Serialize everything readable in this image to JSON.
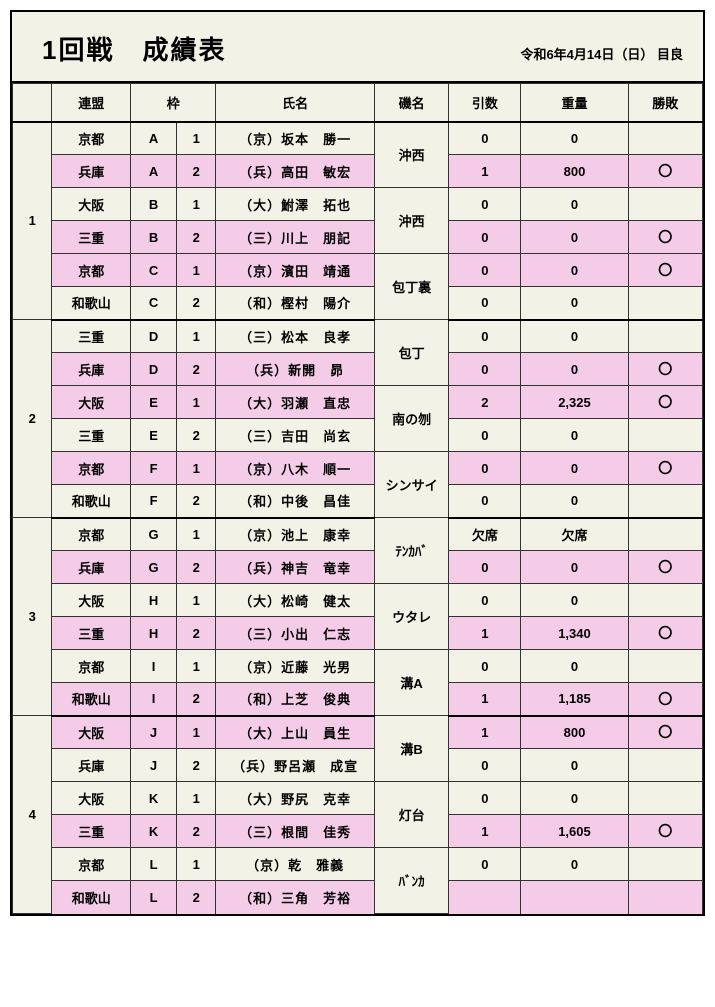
{
  "title": "1回戦　成績表",
  "date": "令和6年4月14日（日）  目良",
  "headers": {
    "group": "",
    "federation": "連盟",
    "frame": "枠",
    "name": "氏名",
    "place": "磯名",
    "count": "引数",
    "weight": "重量",
    "win": "勝敗"
  },
  "colors": {
    "bg": "#f2f2e6",
    "pink": "#f5cce8",
    "border": "#000000"
  },
  "groups": [
    {
      "id": "1",
      "pairs": [
        {
          "place": "沖西",
          "rows": [
            {
              "fed": "京都",
              "fa": "A",
              "fb": "1",
              "name": "（京）坂本　勝一",
              "count": "0",
              "weight": "0",
              "win": "",
              "hl": false
            },
            {
              "fed": "兵庫",
              "fa": "A",
              "fb": "2",
              "name": "（兵）高田　敏宏",
              "count": "1",
              "weight": "800",
              "win": "〇",
              "hl": true
            }
          ]
        },
        {
          "place": "沖西",
          "rows": [
            {
              "fed": "大阪",
              "fa": "B",
              "fb": "1",
              "name": "（大）鮒澤　拓也",
              "count": "0",
              "weight": "0",
              "win": "",
              "hl": false
            },
            {
              "fed": "三重",
              "fa": "B",
              "fb": "2",
              "name": "（三）川上　朋記",
              "count": "0",
              "weight": "0",
              "win": "〇",
              "hl": true
            }
          ]
        },
        {
          "place": "包丁裏",
          "rows": [
            {
              "fed": "京都",
              "fa": "C",
              "fb": "1",
              "name": "（京）濱田　靖通",
              "count": "0",
              "weight": "0",
              "win": "〇",
              "hl": true
            },
            {
              "fed": "和歌山",
              "fa": "C",
              "fb": "2",
              "name": "（和）樫村　陽介",
              "count": "0",
              "weight": "0",
              "win": "",
              "hl": false
            }
          ]
        }
      ]
    },
    {
      "id": "2",
      "pairs": [
        {
          "place": "包丁",
          "rows": [
            {
              "fed": "三重",
              "fa": "D",
              "fb": "1",
              "name": "（三）松本　良孝",
              "count": "0",
              "weight": "0",
              "win": "",
              "hl": false
            },
            {
              "fed": "兵庫",
              "fa": "D",
              "fb": "2",
              "name": "（兵）新開　昴",
              "count": "0",
              "weight": "0",
              "win": "〇",
              "hl": true
            }
          ]
        },
        {
          "place": "南の刎",
          "rows": [
            {
              "fed": "大阪",
              "fa": "E",
              "fb": "1",
              "name": "（大）羽瀬　直忠",
              "count": "2",
              "weight": "2,325",
              "win": "〇",
              "hl": true
            },
            {
              "fed": "三重",
              "fa": "E",
              "fb": "2",
              "name": "（三）吉田　尚玄",
              "count": "0",
              "weight": "0",
              "win": "",
              "hl": false
            }
          ]
        },
        {
          "place": "シンサイ",
          "rows": [
            {
              "fed": "京都",
              "fa": "F",
              "fb": "1",
              "name": "（京）八木　順一",
              "count": "0",
              "weight": "0",
              "win": "〇",
              "hl": true
            },
            {
              "fed": "和歌山",
              "fa": "F",
              "fb": "2",
              "name": "（和）中後　昌佳",
              "count": "0",
              "weight": "0",
              "win": "",
              "hl": false
            }
          ]
        }
      ]
    },
    {
      "id": "3",
      "pairs": [
        {
          "place": "ﾃﾝｶﾊﾞ",
          "rows": [
            {
              "fed": "京都",
              "fa": "G",
              "fb": "1",
              "name": "（京）池上　康幸",
              "count": "欠席",
              "weight": "欠席",
              "win": "",
              "hl": false
            },
            {
              "fed": "兵庫",
              "fa": "G",
              "fb": "2",
              "name": "（兵）神吉　竜幸",
              "count": "0",
              "weight": "0",
              "win": "〇",
              "hl": true
            }
          ]
        },
        {
          "place": "ウタレ",
          "rows": [
            {
              "fed": "大阪",
              "fa": "H",
              "fb": "1",
              "name": "（大）松崎　健太",
              "count": "0",
              "weight": "0",
              "win": "",
              "hl": false
            },
            {
              "fed": "三重",
              "fa": "H",
              "fb": "2",
              "name": "（三）小出　仁志",
              "count": "1",
              "weight": "1,340",
              "win": "〇",
              "hl": true
            }
          ]
        },
        {
          "place": "溝A",
          "rows": [
            {
              "fed": "京都",
              "fa": "I",
              "fb": "1",
              "name": "（京）近藤　光男",
              "count": "0",
              "weight": "0",
              "win": "",
              "hl": false
            },
            {
              "fed": "和歌山",
              "fa": "I",
              "fb": "2",
              "name": "（和）上芝　俊典",
              "count": "1",
              "weight": "1,185",
              "win": "〇",
              "hl": true
            }
          ]
        }
      ]
    },
    {
      "id": "4",
      "pairs": [
        {
          "place": "溝B",
          "rows": [
            {
              "fed": "大阪",
              "fa": "J",
              "fb": "1",
              "name": "（大）上山　員生",
              "count": "1",
              "weight": "800",
              "win": "〇",
              "hl": true
            },
            {
              "fed": "兵庫",
              "fa": "J",
              "fb": "2",
              "name": "（兵）野呂瀬　成宣",
              "count": "0",
              "weight": "0",
              "win": "",
              "hl": false
            }
          ]
        },
        {
          "place": "灯台",
          "rows": [
            {
              "fed": "大阪",
              "fa": "K",
              "fb": "1",
              "name": "（大）野尻　克幸",
              "count": "0",
              "weight": "0",
              "win": "",
              "hl": false
            },
            {
              "fed": "三重",
              "fa": "K",
              "fb": "2",
              "name": "（三）根間　佳秀",
              "count": "1",
              "weight": "1,605",
              "win": "〇",
              "hl": true
            }
          ]
        },
        {
          "place": "ﾊﾞﾝｶ",
          "rows": [
            {
              "fed": "京都",
              "fa": "L",
              "fb": "1",
              "name": "（京）乾　雅義",
              "count": "0",
              "weight": "0",
              "win": "",
              "hl": false
            },
            {
              "fed": "和歌山",
              "fa": "L",
              "fb": "2",
              "name": "（和）三角　芳裕",
              "count": "",
              "weight": "",
              "win": "",
              "hl": true
            }
          ]
        }
      ]
    }
  ]
}
